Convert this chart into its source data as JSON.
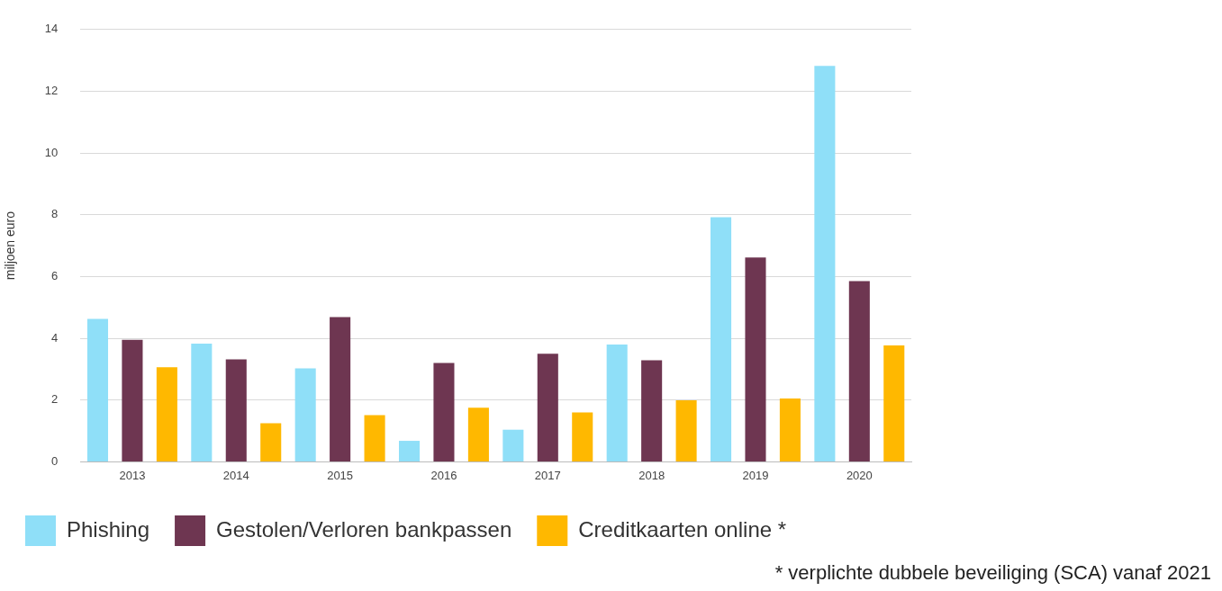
{
  "chart_data": {
    "type": "bar",
    "ylabel": "miljoen euro",
    "categories": [
      "2013",
      "2014",
      "2015",
      "2016",
      "2017",
      "2018",
      "2019",
      "2020"
    ],
    "series": [
      {
        "name": "Phishing",
        "color": "#8fdff8",
        "values": [
          4.63,
          3.83,
          3.03,
          0.68,
          1.04,
          3.8,
          7.92,
          12.82
        ]
      },
      {
        "name": "Gestolen/Verloren bankpassen",
        "color": "#6e3651",
        "values": [
          3.95,
          3.32,
          4.69,
          3.2,
          3.5,
          3.29,
          6.62,
          5.85
        ]
      },
      {
        "name": "Creditkaarten online *",
        "color": "#ffb800",
        "values": [
          3.06,
          1.25,
          1.51,
          1.75,
          1.6,
          1.99,
          2.05,
          3.77
        ]
      }
    ],
    "ylim": [
      0,
      14
    ],
    "yticks": [
      0,
      2,
      4,
      6,
      8,
      10,
      12,
      14
    ],
    "grid": "y",
    "legend": "bottom",
    "annotations": [
      "* verplichte dubbele beveiliging (SCA) vanaf 2021"
    ]
  }
}
